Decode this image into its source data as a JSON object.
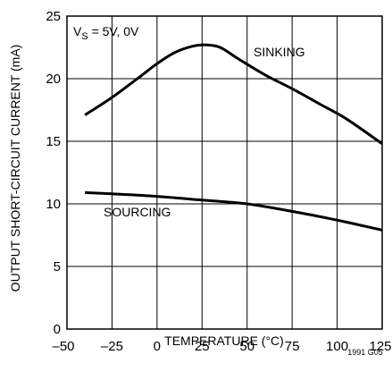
{
  "chart_data": {
    "type": "line",
    "xlabel": "TEMPERATURE (°C)",
    "ylabel": "OUTPUT SHORT-CIRCUIT CURRENT (mA)",
    "xlim": [
      -50,
      125
    ],
    "ylim": [
      0,
      25
    ],
    "x_ticks": [
      "–50",
      "–25",
      "0",
      "25",
      "50",
      "75",
      "100",
      "125"
    ],
    "y_ticks": [
      "0",
      "5",
      "10",
      "15",
      "20",
      "25"
    ],
    "grid": true,
    "condition": {
      "prefix": "V",
      "sub": "S",
      "suffix": " = 5V, 0V"
    },
    "figure_id": "1991 G05",
    "series": [
      {
        "name": "SINKING",
        "x": [
          -40,
          -25,
          -10,
          0,
          10,
          20,
          27,
          35,
          45,
          60,
          75,
          90,
          105,
          125
        ],
        "y": [
          17.1,
          18.5,
          20.1,
          21.2,
          22.1,
          22.6,
          22.7,
          22.5,
          21.6,
          20.3,
          19.2,
          18.0,
          16.8,
          14.8
        ]
      },
      {
        "name": "SOURCING",
        "x": [
          -40,
          -25,
          0,
          25,
          50,
          75,
          100,
          125
        ],
        "y": [
          10.9,
          10.8,
          10.6,
          10.3,
          10.0,
          9.4,
          8.7,
          7.9
        ]
      }
    ]
  }
}
